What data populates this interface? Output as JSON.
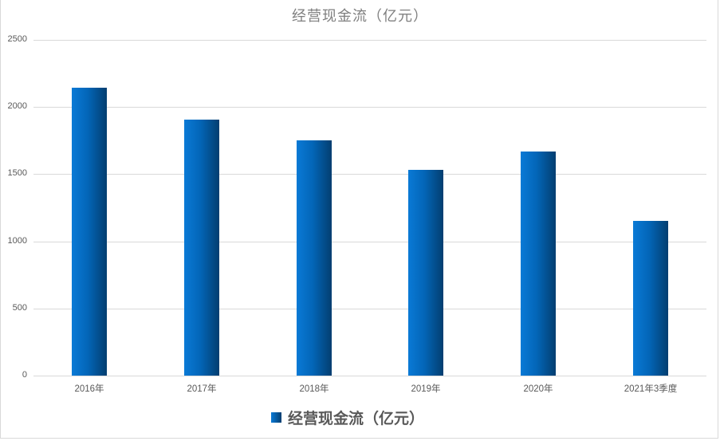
{
  "chart_data": {
    "type": "bar",
    "title": "经营现金流（亿元）",
    "xlabel": "",
    "ylabel": "",
    "categories": [
      "2016年",
      "2017年",
      "2018年",
      "2019年",
      "2020年",
      "2021年3季度"
    ],
    "series": [
      {
        "name": "经营现金流（亿元）",
        "values": [
          2144,
          1906,
          1752,
          1532,
          1669,
          1152
        ],
        "color": "#0366b8"
      }
    ],
    "ylim": [
      0,
      2500
    ],
    "yticks": [
      "0",
      "500",
      "1000",
      "1500",
      "2000",
      "2500"
    ],
    "grid": true,
    "legend_position": "bottom"
  },
  "colors": {
    "bar_light": "#0a7ad6",
    "bar_dark": "#033e70",
    "grid": "#d9d9d9",
    "text": "#595959",
    "title": "#7f7f7f"
  }
}
